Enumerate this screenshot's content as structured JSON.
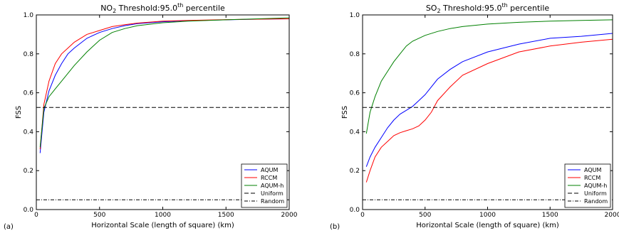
{
  "chart_data": [
    {
      "type": "line",
      "panel_label": "(a)",
      "title": {
        "pre": "NO",
        "sub": "2",
        "mid": " Threshold:95.0",
        "sup": "th",
        "post": " percentile"
      },
      "xlabel": "Horizontal Scale (length of square) (km)",
      "ylabel": "FSS",
      "xlim": [
        0,
        2000
      ],
      "ylim": [
        0,
        1.0
      ],
      "xticks": [
        0,
        500,
        1000,
        1500,
        2000
      ],
      "yticks": [
        0.0,
        0.2,
        0.4,
        0.6,
        0.8,
        1.0
      ],
      "ytick_labels": [
        "0.0",
        "0.2",
        "0.4",
        "0.6",
        "0.8",
        "1.0"
      ],
      "grid": false,
      "legend_position": "bottom-right",
      "series": [
        {
          "name": "AQUM",
          "color": "#0000ff",
          "dash": "solid",
          "x": [
            30,
            60,
            100,
            150,
            200,
            250,
            300,
            400,
            500,
            600,
            700,
            800,
            1000,
            1200,
            1500,
            1750,
            2000
          ],
          "y": [
            0.29,
            0.5,
            0.61,
            0.69,
            0.75,
            0.8,
            0.83,
            0.88,
            0.91,
            0.93,
            0.945,
            0.955,
            0.965,
            0.97,
            0.975,
            0.978,
            0.98
          ]
        },
        {
          "name": "RCCM",
          "color": "#ff0000",
          "dash": "solid",
          "x": [
            30,
            60,
            100,
            150,
            200,
            250,
            300,
            400,
            500,
            600,
            700,
            800,
            1000,
            1200,
            1500,
            1750,
            2000
          ],
          "y": [
            0.31,
            0.54,
            0.66,
            0.75,
            0.8,
            0.83,
            0.86,
            0.9,
            0.92,
            0.94,
            0.95,
            0.958,
            0.968,
            0.972,
            0.976,
            0.978,
            0.98
          ]
        },
        {
          "name": "AQUM-h",
          "color": "#008000",
          "dash": "solid",
          "x": [
            30,
            60,
            100,
            150,
            200,
            250,
            300,
            400,
            500,
            600,
            700,
            800,
            1000,
            1200,
            1500,
            1750,
            2000
          ],
          "y": [
            0.32,
            0.52,
            0.58,
            0.62,
            0.66,
            0.7,
            0.74,
            0.81,
            0.87,
            0.91,
            0.93,
            0.945,
            0.96,
            0.968,
            0.975,
            0.98,
            0.985
          ]
        },
        {
          "name": "Uniform",
          "color": "#000000",
          "dash": "dashed",
          "x": [
            0,
            2000
          ],
          "y": [
            0.525,
            0.525
          ]
        },
        {
          "name": "Random",
          "color": "#000000",
          "dash": "dashdot",
          "x": [
            0,
            2000
          ],
          "y": [
            0.05,
            0.05
          ]
        }
      ]
    },
    {
      "type": "line",
      "panel_label": "(b)",
      "title": {
        "pre": "SO",
        "sub": "2",
        "mid": " Threshold:95.0",
        "sup": "th",
        "post": " percentile"
      },
      "xlabel": "Horizontal Scale (length of square) (km)",
      "ylabel": "FSS",
      "xlim": [
        0,
        2000
      ],
      "ylim": [
        0,
        1.0
      ],
      "xticks": [
        0,
        500,
        1000,
        1500,
        2000
      ],
      "yticks": [
        0.0,
        0.2,
        0.4,
        0.6,
        0.8,
        1.0
      ],
      "ytick_labels": [
        "0.0",
        "0.2",
        "0.4",
        "0.6",
        "0.8",
        "1.0"
      ],
      "grid": false,
      "legend_position": "bottom-right",
      "series": [
        {
          "name": "AQUM",
          "color": "#0000ff",
          "dash": "solid",
          "x": [
            30,
            60,
            100,
            150,
            200,
            250,
            300,
            350,
            400,
            450,
            500,
            600,
            700,
            800,
            1000,
            1250,
            1500,
            1750,
            2000
          ],
          "y": [
            0.22,
            0.27,
            0.32,
            0.37,
            0.42,
            0.46,
            0.49,
            0.51,
            0.53,
            0.56,
            0.59,
            0.67,
            0.72,
            0.76,
            0.81,
            0.85,
            0.88,
            0.89,
            0.905
          ]
        },
        {
          "name": "RCCM",
          "color": "#ff0000",
          "dash": "solid",
          "x": [
            30,
            60,
            100,
            150,
            200,
            250,
            300,
            350,
            400,
            450,
            500,
            550,
            600,
            700,
            800,
            1000,
            1250,
            1500,
            1750,
            2000
          ],
          "y": [
            0.14,
            0.2,
            0.27,
            0.32,
            0.35,
            0.38,
            0.395,
            0.405,
            0.415,
            0.43,
            0.46,
            0.5,
            0.56,
            0.63,
            0.69,
            0.75,
            0.81,
            0.84,
            0.86,
            0.875
          ]
        },
        {
          "name": "AQUM-h",
          "color": "#008000",
          "dash": "solid",
          "x": [
            30,
            60,
            100,
            150,
            200,
            250,
            300,
            350,
            400,
            450,
            500,
            600,
            700,
            800,
            1000,
            1250,
            1500,
            1750,
            2000
          ],
          "y": [
            0.39,
            0.5,
            0.58,
            0.66,
            0.71,
            0.76,
            0.8,
            0.84,
            0.865,
            0.88,
            0.895,
            0.915,
            0.93,
            0.94,
            0.953,
            0.962,
            0.968,
            0.972,
            0.975
          ]
        },
        {
          "name": "Uniform",
          "color": "#000000",
          "dash": "dashed",
          "x": [
            0,
            2000
          ],
          "y": [
            0.525,
            0.525
          ]
        },
        {
          "name": "Random",
          "color": "#000000",
          "dash": "dashdot",
          "x": [
            0,
            2000
          ],
          "y": [
            0.05,
            0.05
          ]
        }
      ]
    }
  ]
}
